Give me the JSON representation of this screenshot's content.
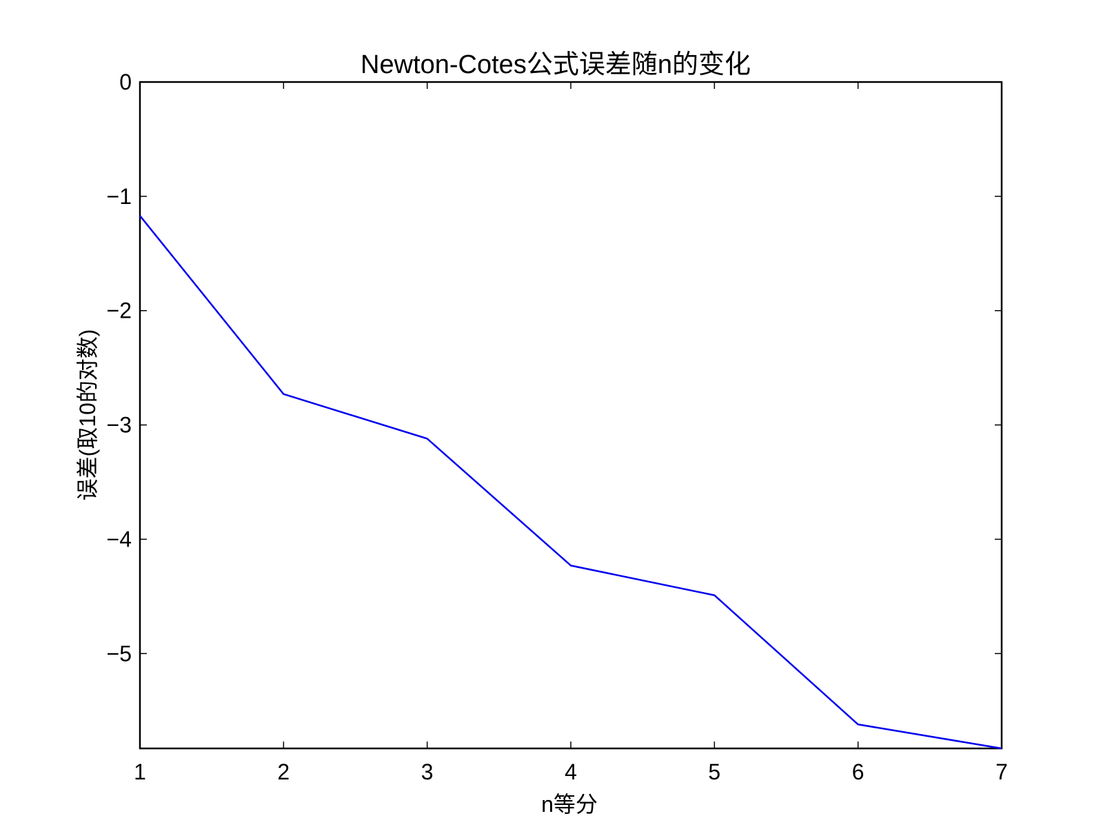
{
  "chart_data": {
    "type": "line",
    "title": "Newton-Cotes公式误差随n的变化",
    "xlabel": "n等分",
    "ylabel": "误差(取10的对数)",
    "xlim": [
      1,
      7
    ],
    "ylim": [
      -5.83,
      0
    ],
    "xticks": [
      1,
      2,
      3,
      4,
      5,
      6,
      7
    ],
    "xtick_labels": [
      "1",
      "2",
      "3",
      "4",
      "5",
      "6",
      "7"
    ],
    "yticks": [
      0,
      -1,
      -2,
      -3,
      -4,
      -5
    ],
    "ytick_labels": [
      "0",
      "−1",
      "−2",
      "−3",
      "−4",
      "−5"
    ],
    "grid": false,
    "series": [
      {
        "x": [
          1,
          2,
          3,
          4,
          5,
          6,
          7
        ],
        "values": [
          -1.17,
          -2.73,
          -3.12,
          -4.23,
          -4.49,
          -5.62,
          -5.83
        ],
        "color": "#0000ee"
      }
    ]
  }
}
